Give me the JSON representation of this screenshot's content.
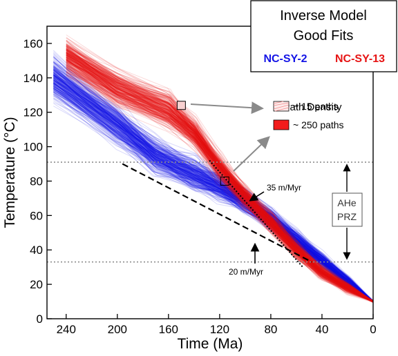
{
  "chart_data": {
    "type": "line",
    "title_lines": [
      "Inverse Model",
      "Good Fits"
    ],
    "xlabel": "Time (Ma)",
    "ylabel": "Temperature (°C)",
    "xlim": [
      255,
      0
    ],
    "ylim": [
      0,
      170
    ],
    "x_ticks": [
      240,
      200,
      160,
      120,
      80,
      40,
      0
    ],
    "y_ticks": [
      0,
      20,
      40,
      60,
      80,
      100,
      120,
      140,
      160
    ],
    "series": [
      {
        "name": "NC-SY-2",
        "color": "#1414e6",
        "paths_x": [
          250,
          200,
          170,
          140,
          120,
          100,
          80,
          60,
          40,
          20,
          0
        ],
        "paths_center_y": [
          140,
          113,
          95,
          84,
          77,
          68,
          58,
          46,
          34,
          22,
          10
        ]
      },
      {
        "name": "NC-SY-13",
        "color": "#e61414",
        "paths_x": [
          240,
          200,
          160,
          140,
          120,
          100,
          80,
          60,
          40,
          20,
          0
        ],
        "paths_center_y": [
          153,
          134,
          121,
          108,
          88,
          71,
          56,
          40,
          27,
          18,
          10
        ]
      }
    ],
    "density_legend": {
      "title": "Path Density",
      "low_label": "~ 15 paths",
      "high_label": "~ 250 paths"
    },
    "rate_lines": [
      {
        "label": "35 m/Myr",
        "x": [
          128,
          55
        ],
        "y": [
          92,
          30
        ]
      },
      {
        "label": "20 m/Myr",
        "x": [
          196,
          48
        ],
        "y": [
          90,
          33
        ]
      }
    ],
    "sample_markers": [
      {
        "x": 150,
        "y": 124
      },
      {
        "x": 116,
        "y": 80
      }
    ],
    "zone": {
      "label_lines": [
        "AHe",
        "PRZ"
      ],
      "y_bounds": [
        33,
        91
      ]
    }
  }
}
